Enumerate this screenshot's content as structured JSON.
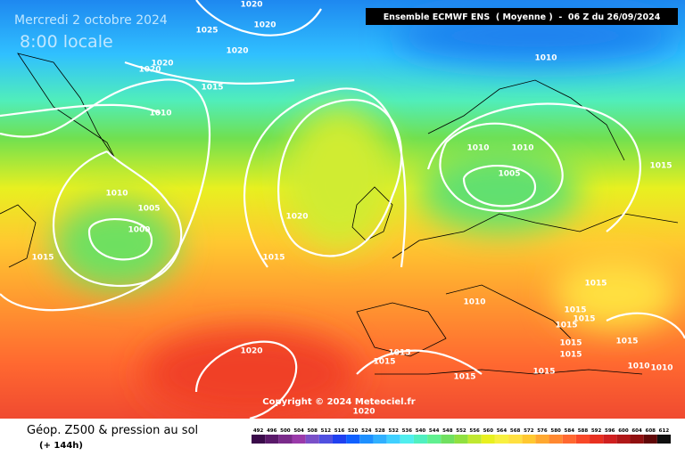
{
  "header": {
    "date": "Mercredi 2 octobre 2024",
    "time": "8:00 locale",
    "model": "Ensemble ECMWF ENS  ( Moyenne )  -  06 Z du 26/09/2024"
  },
  "isobar_labels": [
    1020,
    1020,
    1025,
    1020,
    1020,
    1020,
    1015,
    1010,
    1010,
    1010,
    1010,
    1005,
    1015,
    1010,
    1005,
    1020,
    1000,
    1015,
    1015,
    1015,
    1010,
    1015,
    1015,
    1015,
    1015,
    1015,
    1015,
    1020,
    1015,
    1015,
    1015,
    1015,
    1010,
    1010,
    1020
  ],
  "copyright": "Copyright © 2024 Meteociel.fr",
  "footer": {
    "title": "Géop. Z500 & pression au sol",
    "subtitle": "(+ 144h)"
  },
  "scale": {
    "labels": [
      492,
      496,
      500,
      504,
      508,
      512,
      516,
      520,
      524,
      528,
      532,
      536,
      540,
      544,
      548,
      552,
      556,
      560,
      564,
      568,
      572,
      576,
      580,
      584,
      588,
      592,
      596,
      600,
      604,
      608,
      612
    ],
    "colors": [
      "#3a0a4a",
      "#5a1a6a",
      "#7a2a8a",
      "#9a3aaa",
      "#7a50c8",
      "#5050e0",
      "#2040f0",
      "#1060ff",
      "#1e90ff",
      "#30b0ff",
      "#40d0ff",
      "#50eeee",
      "#50f0c0",
      "#60f090",
      "#70e060",
      "#90e040",
      "#c0e830",
      "#e8f020",
      "#f8f040",
      "#ffe040",
      "#ffc830",
      "#ffa830",
      "#ff8830",
      "#ff6830",
      "#f84828",
      "#e83020",
      "#d02020",
      "#b01818",
      "#901010",
      "#600808",
      "#101010"
    ]
  }
}
